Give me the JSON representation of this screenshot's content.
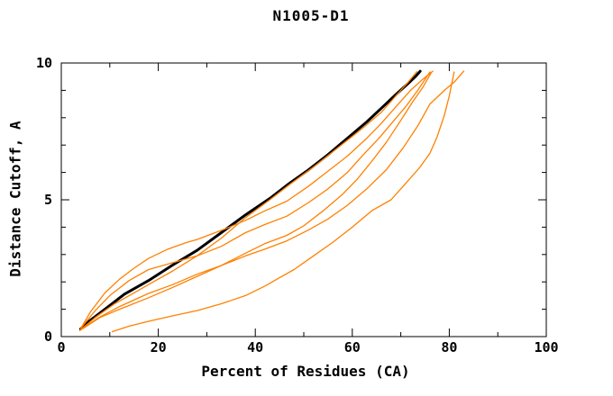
{
  "window": {
    "title": "N1005-D1"
  },
  "colors": {
    "background": "#ffffff",
    "axis": "#000000",
    "highlighted_model": "#000000",
    "other_models": "#ff8000"
  },
  "chart_data": {
    "type": "line",
    "title": "N1005-D1",
    "xlabel": "Percent of Residues (CA)",
    "ylabel": "Distance Cutoff, A",
    "xlim": [
      0,
      100
    ],
    "ylim": [
      0,
      10
    ],
    "grid": false,
    "legend": "none",
    "x_major_ticks": [
      0,
      20,
      40,
      60,
      80,
      100
    ],
    "x_minor_ticks": [
      10,
      30,
      50,
      70,
      90
    ],
    "y_major_ticks": [
      0,
      5,
      10
    ],
    "y_minor_ticks": [
      1,
      2,
      3,
      4,
      6,
      7,
      8,
      9
    ],
    "series": [
      {
        "name": "highlighted-model-black",
        "color": "#000000",
        "width": 3,
        "points": [
          [
            4,
            0.28
          ],
          [
            6,
            0.6
          ],
          [
            9,
            1.0
          ],
          [
            13,
            1.55
          ],
          [
            18,
            2.05
          ],
          [
            23,
            2.62
          ],
          [
            28,
            3.15
          ],
          [
            33,
            3.8
          ],
          [
            38,
            4.45
          ],
          [
            43,
            5.05
          ],
          [
            47,
            5.6
          ],
          [
            51,
            6.1
          ],
          [
            55,
            6.65
          ],
          [
            59,
            7.25
          ],
          [
            63,
            7.85
          ],
          [
            66,
            8.35
          ],
          [
            69,
            8.85
          ],
          [
            71.5,
            9.25
          ],
          [
            73,
            9.5
          ],
          [
            74,
            9.7
          ]
        ]
      },
      {
        "name": "orange-model-1-hugging-black",
        "color": "#ff8000",
        "width": 1.3,
        "points": [
          [
            3.8,
            0.22
          ],
          [
            7,
            0.7
          ],
          [
            11,
            1.2
          ],
          [
            15,
            1.6
          ],
          [
            18,
            1.9
          ],
          [
            23,
            2.4
          ],
          [
            28,
            2.95
          ],
          [
            33,
            3.6
          ],
          [
            38,
            4.35
          ],
          [
            43,
            5.0
          ],
          [
            47,
            5.55
          ],
          [
            52,
            6.2
          ],
          [
            57,
            6.9
          ],
          [
            62,
            7.6
          ],
          [
            66,
            8.2
          ],
          [
            69,
            8.8
          ],
          [
            71.5,
            9.3
          ],
          [
            73.3,
            9.68
          ]
        ]
      },
      {
        "name": "orange-model-2-upper-fan",
        "color": "#ff8000",
        "width": 1.3,
        "points": [
          [
            4.2,
            0.35
          ],
          [
            6,
            0.9
          ],
          [
            9,
            1.6
          ],
          [
            12,
            2.1
          ],
          [
            15,
            2.5
          ],
          [
            18,
            2.86
          ],
          [
            22,
            3.2
          ],
          [
            26,
            3.45
          ],
          [
            28,
            3.55
          ],
          [
            31,
            3.75
          ],
          [
            34,
            3.95
          ],
          [
            38,
            4.25
          ],
          [
            42,
            4.6
          ],
          [
            46.5,
            4.95
          ],
          [
            51,
            5.5
          ],
          [
            55,
            6.05
          ],
          [
            59,
            6.6
          ],
          [
            63,
            7.25
          ],
          [
            66,
            7.8
          ],
          [
            69.5,
            8.5
          ],
          [
            72,
            9.0
          ],
          [
            74.5,
            9.4
          ],
          [
            76.6,
            9.7
          ]
        ]
      },
      {
        "name": "orange-model-3",
        "color": "#ff8000",
        "width": 1.3,
        "points": [
          [
            4,
            0.3
          ],
          [
            7,
            0.95
          ],
          [
            10,
            1.5
          ],
          [
            14,
            2.05
          ],
          [
            18,
            2.45
          ],
          [
            23,
            2.7
          ],
          [
            28,
            2.95
          ],
          [
            33,
            3.3
          ],
          [
            38,
            3.8
          ],
          [
            42,
            4.1
          ],
          [
            46.5,
            4.4
          ],
          [
            51,
            4.9
          ],
          [
            55,
            5.4
          ],
          [
            59,
            6.0
          ],
          [
            62,
            6.6
          ],
          [
            65.5,
            7.25
          ],
          [
            68.6,
            7.9
          ],
          [
            71,
            8.4
          ],
          [
            73.5,
            9.0
          ],
          [
            76,
            9.67
          ]
        ]
      },
      {
        "name": "orange-model-4",
        "color": "#ff8000",
        "width": 1.3,
        "points": [
          [
            4.5,
            0.3
          ],
          [
            8,
            0.7
          ],
          [
            12,
            1.0
          ],
          [
            18,
            1.42
          ],
          [
            23,
            1.8
          ],
          [
            28,
            2.2
          ],
          [
            33,
            2.6
          ],
          [
            38,
            3.05
          ],
          [
            42,
            3.4
          ],
          [
            46.5,
            3.7
          ],
          [
            50,
            4.05
          ],
          [
            54,
            4.6
          ],
          [
            58,
            5.2
          ],
          [
            61,
            5.75
          ],
          [
            64,
            6.4
          ],
          [
            67,
            7.1
          ],
          [
            70,
            7.9
          ],
          [
            72.5,
            8.6
          ],
          [
            74.5,
            9.1
          ],
          [
            76.3,
            9.65
          ]
        ]
      },
      {
        "name": "orange-model-5-sagging",
        "color": "#ff8000",
        "width": 1.3,
        "points": [
          [
            4,
            0.25
          ],
          [
            8,
            0.72
          ],
          [
            12,
            1.1
          ],
          [
            18,
            1.58
          ],
          [
            23,
            1.9
          ],
          [
            28,
            2.28
          ],
          [
            33,
            2.6
          ],
          [
            38,
            2.95
          ],
          [
            42,
            3.2
          ],
          [
            46.5,
            3.5
          ],
          [
            51,
            3.9
          ],
          [
            55,
            4.3
          ],
          [
            59,
            4.8
          ],
          [
            63,
            5.4
          ],
          [
            67,
            6.1
          ],
          [
            70.5,
            6.9
          ],
          [
            73.5,
            7.7
          ],
          [
            76,
            8.5
          ],
          [
            79,
            9.0
          ],
          [
            81,
            9.3
          ],
          [
            83,
            9.7
          ]
        ]
      },
      {
        "name": "orange-model-6-low-flat",
        "color": "#ff8000",
        "width": 1.3,
        "points": [
          [
            10.5,
            0.18
          ],
          [
            14,
            0.38
          ],
          [
            18,
            0.56
          ],
          [
            23,
            0.76
          ],
          [
            28,
            0.95
          ],
          [
            33,
            1.2
          ],
          [
            38,
            1.5
          ],
          [
            42,
            1.85
          ],
          [
            45,
            2.15
          ],
          [
            48,
            2.45
          ],
          [
            52,
            2.95
          ],
          [
            56,
            3.45
          ],
          [
            60,
            4.0
          ],
          [
            64,
            4.6
          ],
          [
            68,
            5.0
          ],
          [
            71,
            5.6
          ],
          [
            74,
            6.2
          ],
          [
            76,
            6.7
          ],
          [
            77.5,
            7.3
          ],
          [
            79,
            8.1
          ],
          [
            80,
            8.8
          ],
          [
            81,
            9.67
          ]
        ]
      }
    ]
  }
}
